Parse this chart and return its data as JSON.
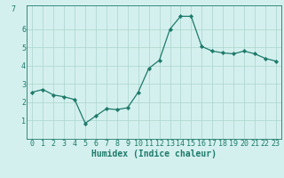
{
  "xlabel": "Humidex (Indice chaleur)",
  "x_values": [
    0,
    1,
    2,
    3,
    4,
    5,
    6,
    7,
    8,
    9,
    10,
    11,
    12,
    13,
    14,
    15,
    16,
    17,
    18,
    19,
    20,
    21,
    22,
    23
  ],
  "y_values": [
    2.55,
    2.7,
    2.4,
    2.3,
    2.15,
    0.85,
    1.25,
    1.65,
    1.6,
    1.7,
    2.55,
    3.85,
    4.3,
    6.0,
    6.7,
    6.7,
    5.05,
    4.8,
    4.7,
    4.65,
    4.8,
    4.65,
    4.4,
    4.25
  ],
  "line_color": "#1d7a6a",
  "marker_color": "#1d7a6a",
  "bg_color": "#d4f0ee",
  "grid_color": "#aad4cc",
  "axis_color": "#1d7a6a",
  "tick_color": "#1d7a6a",
  "ylim": [
    0,
    7.3
  ],
  "yticks": [
    1,
    2,
    3,
    4,
    5,
    6
  ],
  "xlim": [
    -0.5,
    23.5
  ],
  "xticks": [
    0,
    1,
    2,
    3,
    4,
    5,
    6,
    7,
    8,
    9,
    10,
    11,
    12,
    13,
    14,
    15,
    16,
    17,
    18,
    19,
    20,
    21,
    22,
    23
  ],
  "xlabel_fontsize": 7.0,
  "tick_fontsize": 6.0
}
